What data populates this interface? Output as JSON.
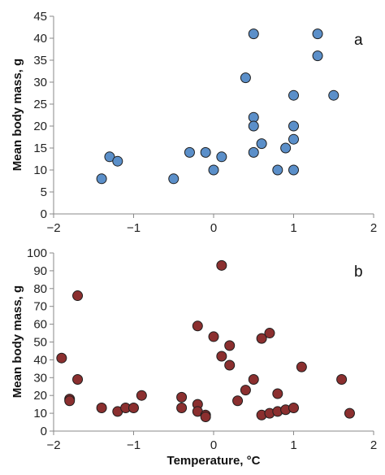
{
  "chart_data": [
    {
      "type": "scatter",
      "panel_label": "a",
      "ylabel": "Mean body mass, g",
      "xlabel": "",
      "xlim": [
        -2,
        2
      ],
      "ylim": [
        0,
        45
      ],
      "xticks": [
        -2,
        -1,
        0,
        1,
        2
      ],
      "yticks": [
        0,
        5,
        10,
        15,
        20,
        25,
        30,
        35,
        40,
        45
      ],
      "xtick_labels": [
        "−2",
        "−1",
        "0",
        "1",
        "2"
      ],
      "ytick_labels": [
        "0",
        "5",
        "10",
        "15",
        "20",
        "25",
        "30",
        "35",
        "40",
        "45"
      ],
      "marker_color": "#5b8fc9",
      "grid": false,
      "points": [
        {
          "x": -1.4,
          "y": 8
        },
        {
          "x": -1.3,
          "y": 13
        },
        {
          "x": -1.2,
          "y": 12
        },
        {
          "x": -0.5,
          "y": 8
        },
        {
          "x": -0.3,
          "y": 14
        },
        {
          "x": -0.1,
          "y": 14
        },
        {
          "x": 0.0,
          "y": 10
        },
        {
          "x": 0.1,
          "y": 13
        },
        {
          "x": 0.4,
          "y": 31
        },
        {
          "x": 0.5,
          "y": 41
        },
        {
          "x": 0.5,
          "y": 22
        },
        {
          "x": 0.5,
          "y": 20
        },
        {
          "x": 0.5,
          "y": 14
        },
        {
          "x": 0.6,
          "y": 16
        },
        {
          "x": 0.8,
          "y": 10
        },
        {
          "x": 0.9,
          "y": 15
        },
        {
          "x": 1.0,
          "y": 27
        },
        {
          "x": 1.0,
          "y": 20
        },
        {
          "x": 1.0,
          "y": 17
        },
        {
          "x": 1.0,
          "y": 10
        },
        {
          "x": 1.3,
          "y": 41
        },
        {
          "x": 1.3,
          "y": 36
        },
        {
          "x": 1.5,
          "y": 27
        }
      ]
    },
    {
      "type": "scatter",
      "panel_label": "b",
      "ylabel": "Mean body mass, g",
      "xlabel": "Temperature, °C",
      "xlim": [
        -2,
        2
      ],
      "ylim": [
        0,
        100
      ],
      "xticks": [
        -2,
        -1,
        0,
        1,
        2
      ],
      "yticks": [
        0,
        10,
        20,
        30,
        40,
        50,
        60,
        70,
        80,
        90,
        100
      ],
      "xtick_labels": [
        "−2",
        "−1",
        "0",
        "1",
        "2"
      ],
      "ytick_labels": [
        "0",
        "10",
        "20",
        "30",
        "40",
        "50",
        "60",
        "70",
        "80",
        "90",
        "100"
      ],
      "marker_color": "#8b2f2f",
      "grid": false,
      "points": [
        {
          "x": -1.9,
          "y": 41
        },
        {
          "x": -1.8,
          "y": 18
        },
        {
          "x": -1.8,
          "y": 17
        },
        {
          "x": -1.7,
          "y": 76
        },
        {
          "x": -1.7,
          "y": 29
        },
        {
          "x": -1.4,
          "y": 13
        },
        {
          "x": -1.2,
          "y": 11
        },
        {
          "x": -1.1,
          "y": 13
        },
        {
          "x": -1.0,
          "y": 13
        },
        {
          "x": -0.9,
          "y": 20
        },
        {
          "x": -0.4,
          "y": 19
        },
        {
          "x": -0.4,
          "y": 13
        },
        {
          "x": -0.2,
          "y": 59
        },
        {
          "x": -0.2,
          "y": 15
        },
        {
          "x": -0.2,
          "y": 11
        },
        {
          "x": -0.1,
          "y": 9
        },
        {
          "x": -0.1,
          "y": 8
        },
        {
          "x": 0.0,
          "y": 53
        },
        {
          "x": 0.1,
          "y": 93
        },
        {
          "x": 0.1,
          "y": 42
        },
        {
          "x": 0.2,
          "y": 48
        },
        {
          "x": 0.2,
          "y": 37
        },
        {
          "x": 0.3,
          "y": 17
        },
        {
          "x": 0.4,
          "y": 23
        },
        {
          "x": 0.5,
          "y": 29
        },
        {
          "x": 0.6,
          "y": 52
        },
        {
          "x": 0.6,
          "y": 9
        },
        {
          "x": 0.7,
          "y": 55
        },
        {
          "x": 0.7,
          "y": 10
        },
        {
          "x": 0.8,
          "y": 21
        },
        {
          "x": 0.8,
          "y": 11
        },
        {
          "x": 0.9,
          "y": 12
        },
        {
          "x": 1.0,
          "y": 13
        },
        {
          "x": 1.1,
          "y": 36
        },
        {
          "x": 1.6,
          "y": 29
        },
        {
          "x": 1.7,
          "y": 10
        }
      ]
    }
  ]
}
